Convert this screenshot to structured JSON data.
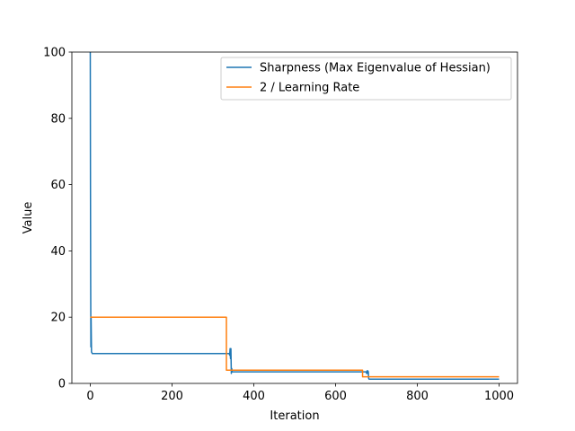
{
  "chart_data": {
    "type": "line",
    "title": "",
    "xlabel": "Iteration",
    "ylabel": "Value",
    "xlim": [
      -45,
      1045
    ],
    "ylim": [
      0,
      100
    ],
    "xticks": [
      0,
      200,
      400,
      600,
      800,
      1000
    ],
    "yticks": [
      0,
      20,
      40,
      60,
      80,
      100
    ],
    "grid": false,
    "legend_position": "top-right",
    "series": [
      {
        "name": "Sharpness (Max Eigenvalue of Hessian)",
        "color": "#1f77b4",
        "x": [
          0,
          0.5,
          1,
          1.5,
          2,
          3,
          5,
          340,
          341,
          342,
          343,
          344,
          345,
          346,
          347,
          350,
          675,
          676,
          677,
          678,
          679,
          680,
          681,
          682,
          685,
          1000
        ],
        "y": [
          100,
          60,
          30,
          11,
          20,
          9.5,
          9,
          9,
          8.5,
          10.5,
          7.5,
          10.5,
          3,
          4.5,
          3.5,
          3.5,
          3.5,
          3,
          3.8,
          3,
          3.8,
          3.5,
          1.5,
          1.3,
          1.3,
          1.3
        ]
      },
      {
        "name": "2 / Learning Rate",
        "color": "#ff7f0e",
        "x": [
          0,
          333,
          333,
          666,
          666,
          1000
        ],
        "y": [
          20,
          20,
          4,
          4,
          2,
          2
        ]
      }
    ]
  }
}
